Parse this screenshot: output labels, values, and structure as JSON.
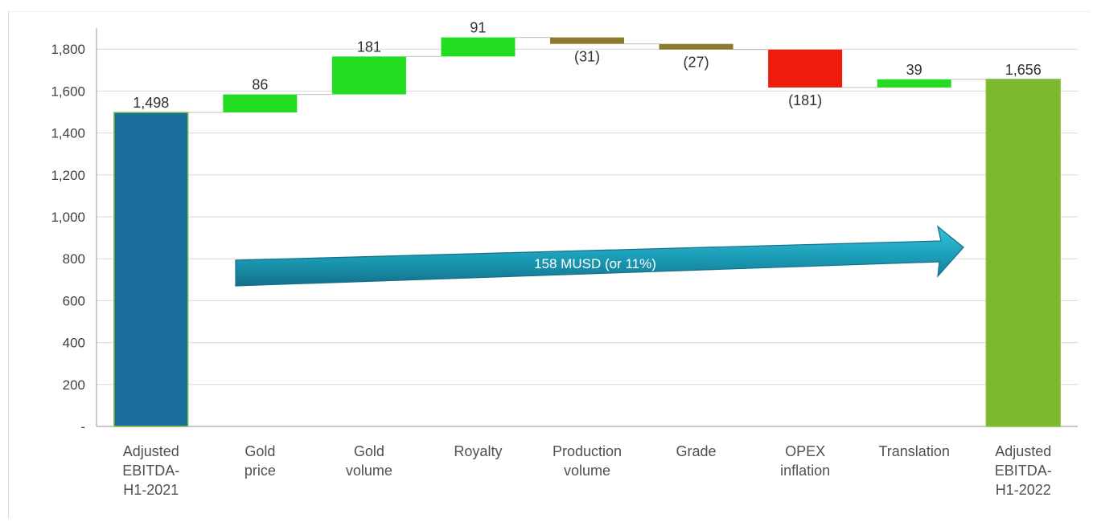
{
  "chart_data": {
    "type": "waterfall",
    "categories": [
      [
        "Adjusted",
        "EBITDA-",
        "H1-2021"
      ],
      [
        "Gold",
        "price"
      ],
      [
        "Gold",
        "volume"
      ],
      [
        "Royalty"
      ],
      [
        "Production",
        "volume"
      ],
      [
        "Grade"
      ],
      [
        "OPEX",
        "inflation"
      ],
      [
        "Translation"
      ],
      [
        "Adjusted",
        "EBITDA-",
        "H1-2022"
      ]
    ],
    "values": [
      1498,
      86,
      181,
      91,
      -31,
      -27,
      -181,
      39,
      1656
    ],
    "kinds": [
      "total",
      "delta",
      "delta",
      "delta",
      "delta",
      "delta",
      "delta",
      "delta",
      "total"
    ],
    "data_labels": [
      "1,498",
      "86",
      "181",
      "91",
      "(31)",
      "(27)",
      "(181)",
      "39",
      "1,656"
    ],
    "colors": [
      "#1a6e9c",
      "#22dd22",
      "#22dd22",
      "#22dd22",
      "#8c7a2e",
      "#8c7a2e",
      "#ee1c0c",
      "#22dd22",
      "#7cb82e"
    ],
    "yticks": [
      0,
      200,
      400,
      600,
      800,
      1000,
      1200,
      1400,
      1600,
      1800
    ],
    "ytick_labels": [
      "-",
      "200",
      "400",
      "600",
      "800",
      "1,000",
      "1,200",
      "1,400",
      "1,600",
      "1,800"
    ],
    "ylim": [
      0,
      1900
    ],
    "grid": true,
    "annotation": "158 MUSD  (or 11%)",
    "colors_extra": {
      "grid": "#d9d9d9",
      "arrow": "#1fa3bd",
      "arrow_dark": "#156f86",
      "connector": "#bfbfbf"
    }
  }
}
